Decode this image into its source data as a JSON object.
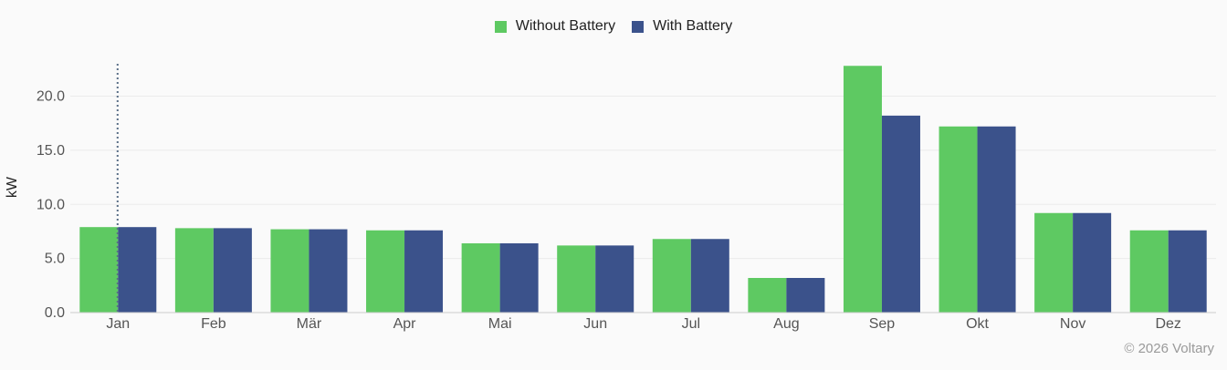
{
  "chart_data": {
    "type": "bar",
    "categories": [
      "Jan",
      "Feb",
      "Mär",
      "Apr",
      "Mai",
      "Jun",
      "Jul",
      "Aug",
      "Sep",
      "Okt",
      "Nov",
      "Dez"
    ],
    "series": [
      {
        "name": "Without Battery",
        "color": "#5ec962",
        "values": [
          7.9,
          7.8,
          7.7,
          7.6,
          6.4,
          6.2,
          6.8,
          3.2,
          22.8,
          17.2,
          9.2,
          7.6
        ]
      },
      {
        "name": "With Battery",
        "color": "#3b528b",
        "values": [
          7.9,
          7.8,
          7.7,
          7.6,
          6.4,
          6.2,
          6.8,
          3.2,
          18.2,
          17.2,
          9.2,
          7.6
        ]
      }
    ],
    "ylabel": "kW",
    "xlabel": "",
    "ylim": [
      0,
      24
    ],
    "yticks": [
      0,
      5,
      10,
      15,
      20
    ],
    "ytick_labels": [
      "0.0",
      "5.0",
      "10.0",
      "15.0",
      "20.0"
    ],
    "grid": true,
    "legend_position": "top-center",
    "highlighted_category": "Jan"
  },
  "footer": {
    "copyright": "© 2026 Voltary"
  }
}
